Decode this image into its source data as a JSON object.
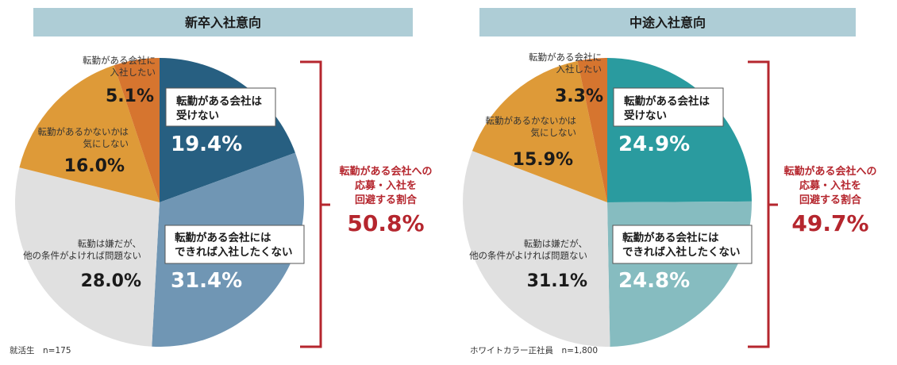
{
  "chart_data": [
    {
      "type": "pie",
      "title": "新卒入社意向",
      "slices": [
        {
          "label_lines": [
            "転勤がある会社は",
            "受けない"
          ],
          "value": 19.4,
          "value_text": "19.4%",
          "color": "#275f81",
          "boxed": true
        },
        {
          "label_lines": [
            "転勤がある会社には",
            "できれば入社したくない"
          ],
          "value": 31.4,
          "value_text": "31.4%",
          "color": "#7096b4",
          "boxed": true
        },
        {
          "label_lines": [
            "転勤は嫌だが、",
            "他の条件がよければ問題ない"
          ],
          "value": 28.0,
          "value_text": "28.0%",
          "color": "#e0e0e0",
          "boxed": false
        },
        {
          "label_lines": [
            "転勤があるかないかは",
            "気にしない"
          ],
          "value": 16.0,
          "value_text": "16.0%",
          "color": "#de9a38",
          "boxed": false
        },
        {
          "label_lines": [
            "転勤がある会社に",
            "入社したい"
          ],
          "value": 5.1,
          "value_text": "5.1%",
          "color": "#d6752f",
          "boxed": false
        }
      ],
      "summary_lines": [
        "転勤がある会社への",
        "応募・入社を",
        "回避する割合"
      ],
      "summary_value": "50.8%",
      "note": "就活生　n=175"
    },
    {
      "type": "pie",
      "title": "中途入社意向",
      "slices": [
        {
          "label_lines": [
            "転勤がある会社は",
            "受けない"
          ],
          "value": 24.9,
          "value_text": "24.9%",
          "color": "#2a9b9f",
          "boxed": true
        },
        {
          "label_lines": [
            "転勤がある会社には",
            "できれば入社したくない"
          ],
          "value": 24.8,
          "value_text": "24.8%",
          "color": "#86bcc0",
          "boxed": true
        },
        {
          "label_lines": [
            "転勤は嫌だが、",
            "他の条件がよければ問題ない"
          ],
          "value": 31.1,
          "value_text": "31.1%",
          "color": "#e0e0e0",
          "boxed": false
        },
        {
          "label_lines": [
            "転勤があるかないかは",
            "気にしない"
          ],
          "value": 15.9,
          "value_text": "15.9%",
          "color": "#de9a38",
          "boxed": false
        },
        {
          "label_lines": [
            "転勤がある会社に",
            "入社したい"
          ],
          "value": 3.3,
          "value_text": "3.3%",
          "color": "#d6752f",
          "boxed": false
        }
      ],
      "summary_lines": [
        "転勤がある会社への",
        "応募・入社を",
        "回避する割合"
      ],
      "summary_value": "49.7%",
      "note": "ホワイトカラー正社員　n=1,800"
    }
  ],
  "colors": {
    "accent": "#b5262e",
    "header_bg": "#aecdd6"
  }
}
